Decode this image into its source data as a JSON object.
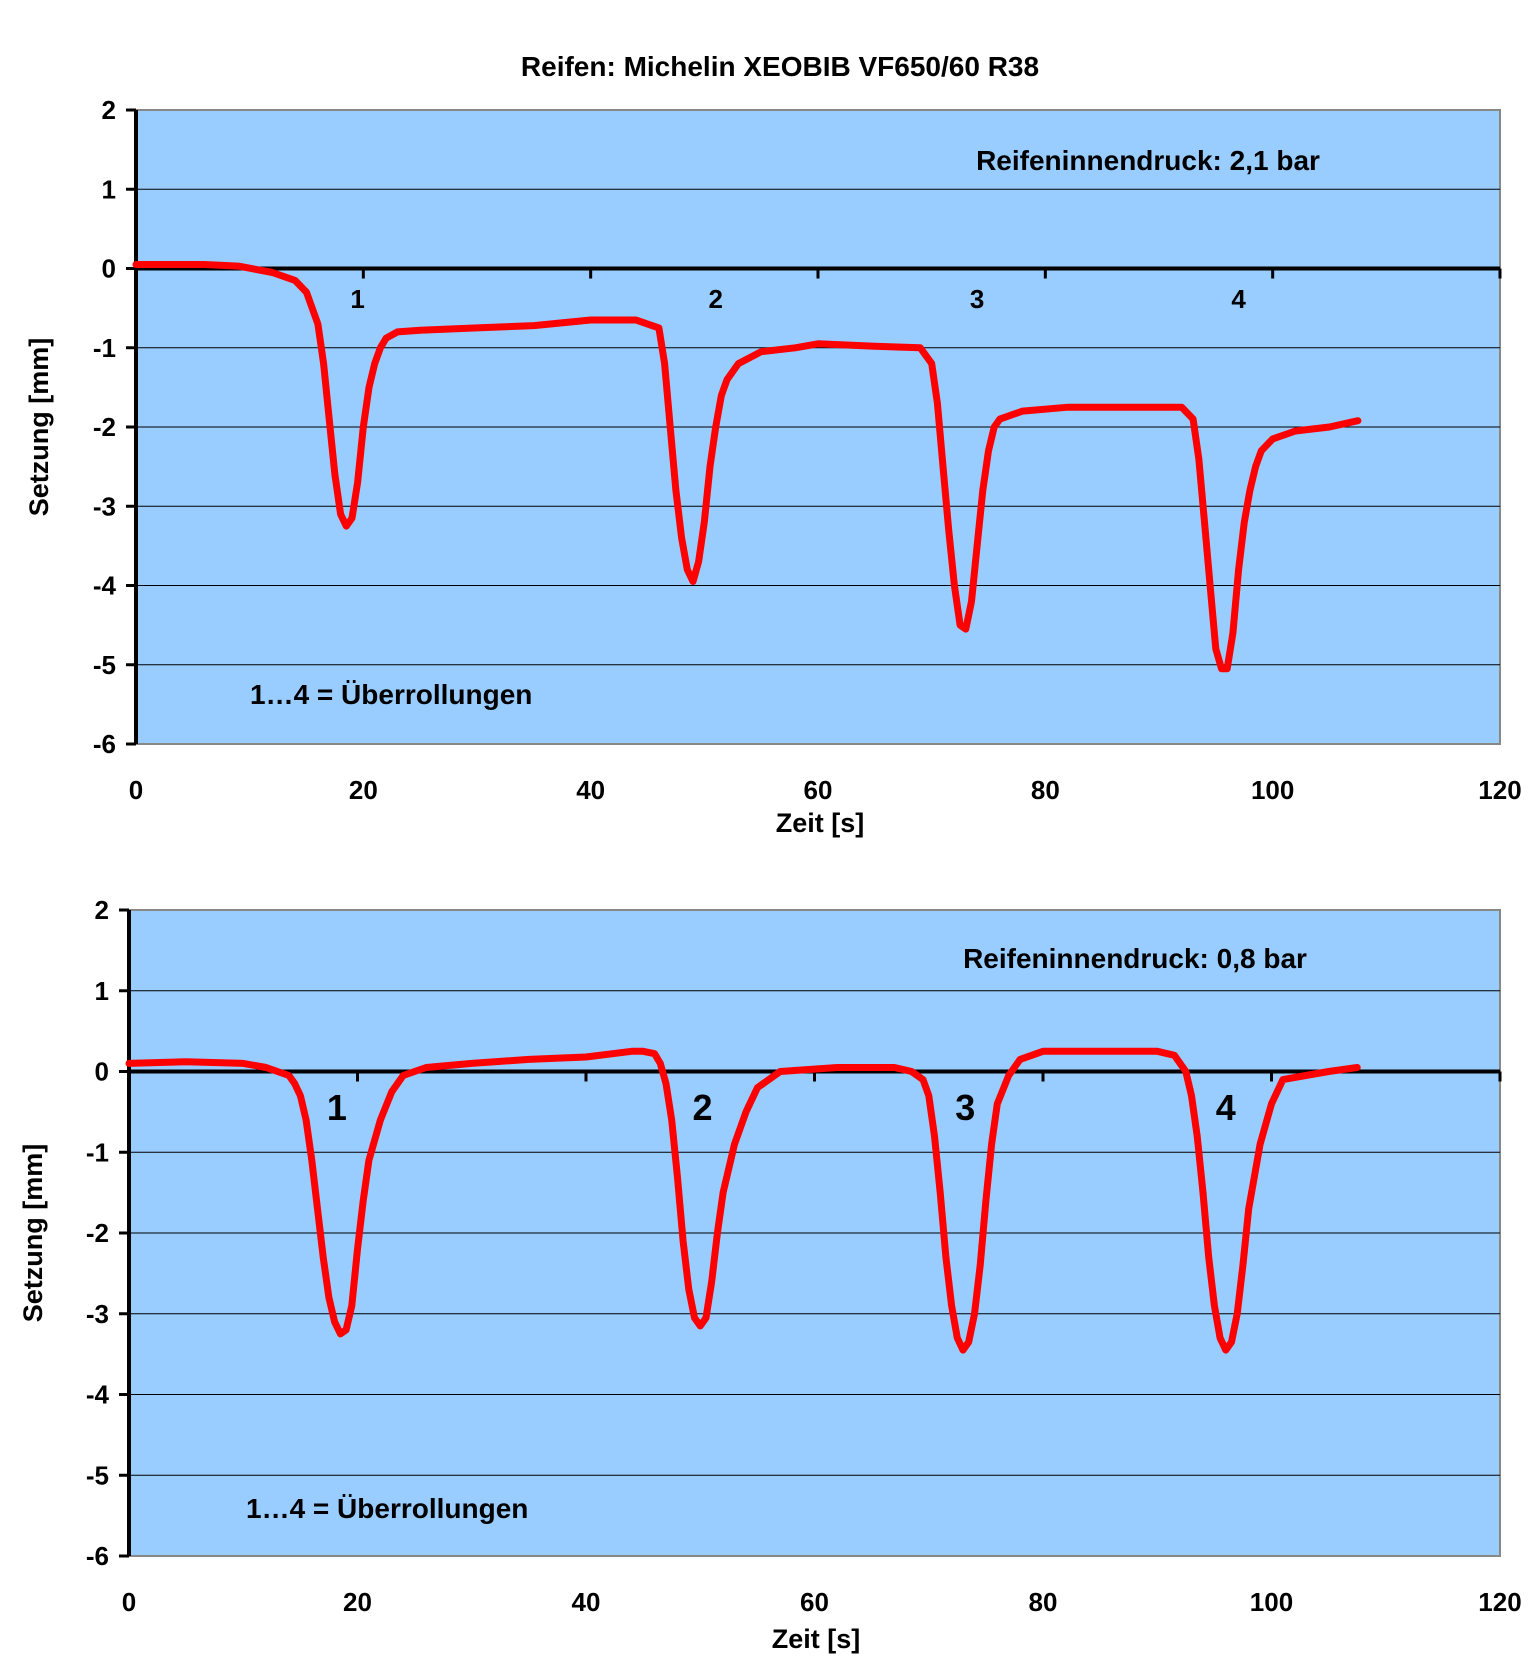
{
  "title": "Reifen: Michelin XEOBIB VF650/60 R38",
  "colors": {
    "plot_bg": "#99ccff",
    "line": "#ff0000",
    "grid": "#000000",
    "axis": "#000000"
  },
  "chart_data": [
    {
      "type": "line",
      "title": "",
      "xlabel": "Zeit [s]",
      "ylabel": "Setzung [mm]",
      "xlim": [
        0,
        120
      ],
      "ylim": [
        -6,
        2
      ],
      "xticks": [
        0,
        20,
        40,
        60,
        80,
        100,
        120
      ],
      "yticks": [
        2,
        1,
        0,
        -1,
        -2,
        -3,
        -4,
        -5,
        -6
      ],
      "grid": true,
      "annotations": [
        "Reifeninnendruck: 2,1 bar",
        "1…4 = Überrollungen"
      ],
      "pass_labels": [
        {
          "text": "1",
          "x": 19.5,
          "y": -0.35
        },
        {
          "text": "2",
          "x": 51,
          "y": -0.35
        },
        {
          "text": "3",
          "x": 74,
          "y": -0.35
        },
        {
          "text": "4",
          "x": 97,
          "y": -0.35
        }
      ],
      "series": [
        {
          "x": [
            0,
            3,
            6,
            9,
            12,
            14,
            15,
            16,
            16.5,
            17,
            17.5,
            18,
            18.5,
            19,
            19.5,
            20,
            20.5,
            21,
            21.5,
            22,
            23,
            25,
            30,
            35,
            40,
            44,
            46,
            46.5,
            47,
            47.5,
            48,
            48.5,
            49,
            49.5,
            50,
            50.5,
            51,
            51.5,
            52,
            53,
            55,
            58,
            60,
            65,
            69,
            70,
            70.5,
            71,
            71.5,
            72,
            72.5,
            73,
            73.5,
            74,
            74.5,
            75,
            75.5,
            76,
            77,
            78,
            82,
            88,
            92,
            93,
            93.5,
            94,
            94.5,
            95,
            95.5,
            96,
            96.5,
            97,
            97.5,
            98,
            98.5,
            99,
            100,
            102,
            105,
            107.5
          ],
          "y": [
            0.05,
            0.05,
            0.05,
            0.03,
            -0.05,
            -0.15,
            -0.3,
            -0.7,
            -1.2,
            -1.9,
            -2.6,
            -3.1,
            -3.25,
            -3.15,
            -2.7,
            -2.0,
            -1.5,
            -1.2,
            -1.0,
            -0.88,
            -0.8,
            -0.78,
            -0.75,
            -0.72,
            -0.65,
            -0.65,
            -0.75,
            -1.2,
            -2.0,
            -2.8,
            -3.4,
            -3.8,
            -3.95,
            -3.7,
            -3.2,
            -2.5,
            -2.0,
            -1.6,
            -1.4,
            -1.2,
            -1.05,
            -1.0,
            -0.95,
            -0.98,
            -1.0,
            -1.2,
            -1.7,
            -2.5,
            -3.3,
            -4.0,
            -4.5,
            -4.55,
            -4.2,
            -3.5,
            -2.8,
            -2.3,
            -2.0,
            -1.9,
            -1.85,
            -1.8,
            -1.75,
            -1.75,
            -1.75,
            -1.9,
            -2.4,
            -3.2,
            -4.0,
            -4.8,
            -5.05,
            -5.05,
            -4.6,
            -3.8,
            -3.2,
            -2.8,
            -2.5,
            -2.3,
            -2.15,
            -2.05,
            -2.0,
            -1.92
          ]
        }
      ]
    },
    {
      "type": "line",
      "title": "",
      "xlabel": "Zeit [s]",
      "ylabel": "Setzung [mm]",
      "xlim": [
        0,
        120
      ],
      "ylim": [
        -6,
        2
      ],
      "xticks": [
        0,
        20,
        40,
        60,
        80,
        100,
        120
      ],
      "yticks": [
        2,
        1,
        0,
        -1,
        -2,
        -3,
        -4,
        -5,
        -6
      ],
      "grid": true,
      "annotations": [
        "Reifeninnendruck: 0,8 bar",
        "1…4 = Überrollungen"
      ],
      "pass_labels": [
        {
          "text": "1",
          "x": 18.2,
          "y": -0.45
        },
        {
          "text": "2",
          "x": 50.2,
          "y": -0.45
        },
        {
          "text": "3",
          "x": 73.2,
          "y": -0.45
        },
        {
          "text": "4",
          "x": 96,
          "y": -0.45
        }
      ],
      "series": [
        {
          "x": [
            0,
            5,
            10,
            12,
            13,
            14,
            14.5,
            15,
            15.5,
            16,
            16.5,
            17,
            17.5,
            18,
            18.5,
            19,
            19.5,
            20,
            20.5,
            21,
            22,
            23,
            24,
            26,
            30,
            35,
            40,
            44,
            45,
            46,
            46.5,
            47,
            47.5,
            48,
            48.5,
            49,
            49.5,
            50,
            50.5,
            51,
            51.5,
            52,
            53,
            54,
            55,
            57,
            62,
            67,
            68.5,
            69.5,
            70,
            70.5,
            71,
            71.5,
            72,
            72.5,
            73,
            73.5,
            74,
            74.5,
            75,
            75.5,
            76,
            77,
            78,
            80,
            85,
            90,
            91.5,
            92.5,
            93,
            93.5,
            94,
            94.5,
            95,
            95.5,
            96,
            96.5,
            97,
            97.5,
            98,
            99,
            100,
            101,
            103,
            105,
            107.5
          ],
          "y": [
            0.1,
            0.12,
            0.1,
            0.05,
            0.0,
            -0.05,
            -0.15,
            -0.3,
            -0.6,
            -1.1,
            -1.7,
            -2.3,
            -2.8,
            -3.1,
            -3.25,
            -3.2,
            -2.9,
            -2.2,
            -1.6,
            -1.1,
            -0.6,
            -0.25,
            -0.05,
            0.05,
            0.1,
            0.15,
            0.18,
            0.25,
            0.25,
            0.22,
            0.1,
            -0.15,
            -0.6,
            -1.3,
            -2.1,
            -2.7,
            -3.05,
            -3.15,
            -3.05,
            -2.6,
            -2.0,
            -1.5,
            -0.9,
            -0.5,
            -0.2,
            0.0,
            0.05,
            0.05,
            0.0,
            -0.1,
            -0.3,
            -0.8,
            -1.5,
            -2.3,
            -2.9,
            -3.3,
            -3.45,
            -3.35,
            -3.0,
            -2.4,
            -1.6,
            -0.9,
            -0.4,
            -0.05,
            0.15,
            0.25,
            0.25,
            0.25,
            0.2,
            0.0,
            -0.3,
            -0.8,
            -1.5,
            -2.3,
            -2.9,
            -3.3,
            -3.45,
            -3.35,
            -3.0,
            -2.4,
            -1.7,
            -0.9,
            -0.4,
            -0.1,
            -0.05,
            0.0,
            0.05
          ]
        }
      ]
    }
  ]
}
